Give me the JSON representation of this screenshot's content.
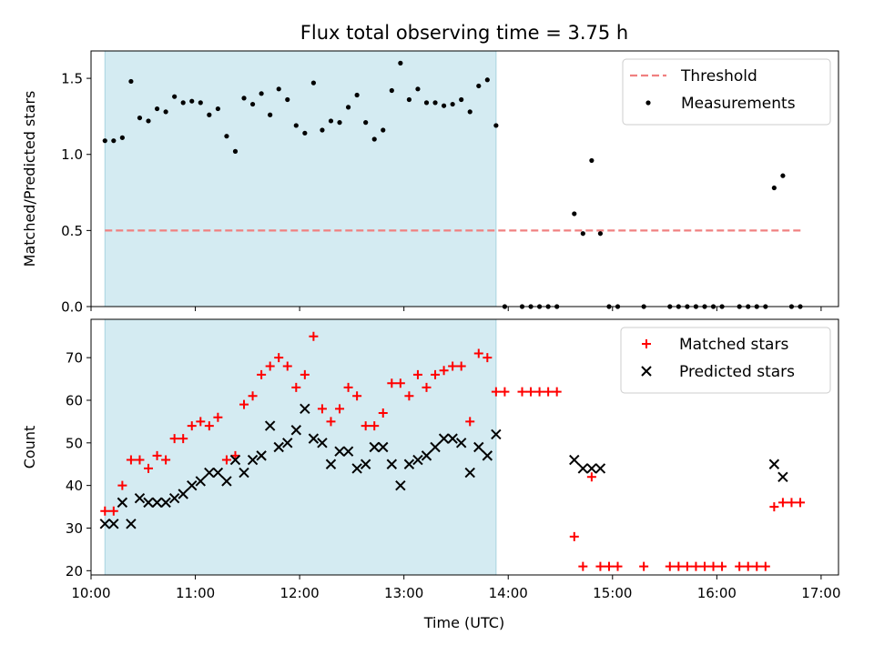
{
  "title": "Flux total observing time = 3.75 h",
  "xlabel": "Time (UTC)",
  "chart_data": [
    {
      "type": "scatter",
      "ylabel": "Matched/Predicted stars",
      "ylim": [
        0,
        1.68
      ],
      "yticks": [
        0.0,
        0.5,
        1.0,
        1.5
      ],
      "ytick_labels": [
        "0.0",
        "0.5",
        "1.0",
        "1.5"
      ],
      "xlim": [
        "10:00",
        "17:10"
      ],
      "shaded_span": [
        "10:08",
        "13:53"
      ],
      "legend_position": "top-right",
      "threshold": {
        "name": "Threshold",
        "value": 0.5,
        "x": [
          "10:08",
          "16:50"
        ],
        "color": "#f08080"
      },
      "series": [
        {
          "name": "Measurements",
          "color": "#000000",
          "x": [
            "10:08",
            "10:13",
            "10:18",
            "10:23",
            "10:28",
            "10:33",
            "10:38",
            "10:43",
            "10:48",
            "10:53",
            "10:58",
            "11:03",
            "11:08",
            "11:13",
            "11:18",
            "11:23",
            "11:28",
            "11:33",
            "11:38",
            "11:43",
            "11:48",
            "11:53",
            "11:58",
            "12:03",
            "12:08",
            "12:13",
            "12:18",
            "12:23",
            "12:28",
            "12:33",
            "12:38",
            "12:43",
            "12:48",
            "12:53",
            "12:58",
            "13:03",
            "13:08",
            "13:13",
            "13:18",
            "13:23",
            "13:28",
            "13:33",
            "13:38",
            "13:43",
            "13:48",
            "13:53",
            "13:58",
            "14:08",
            "14:13",
            "14:18",
            "14:23",
            "14:28",
            "14:38",
            "14:43",
            "14:48",
            "14:53",
            "14:58",
            "15:03",
            "15:18",
            "15:33",
            "15:38",
            "15:43",
            "15:48",
            "15:53",
            "15:58",
            "16:03",
            "16:13",
            "16:18",
            "16:23",
            "16:28",
            "16:33",
            "16:38",
            "16:43",
            "16:48"
          ],
          "y": [
            1.09,
            1.09,
            1.11,
            1.48,
            1.24,
            1.22,
            1.3,
            1.28,
            1.38,
            1.34,
            1.35,
            1.34,
            1.26,
            1.3,
            1.12,
            1.02,
            1.37,
            1.33,
            1.4,
            1.26,
            1.43,
            1.36,
            1.19,
            1.14,
            1.47,
            1.16,
            1.22,
            1.21,
            1.31,
            1.39,
            1.21,
            1.1,
            1.16,
            1.42,
            1.6,
            1.36,
            1.43,
            1.34,
            1.34,
            1.32,
            1.33,
            1.36,
            1.28,
            1.45,
            1.49,
            1.19,
            0.0,
            0.0,
            0.0,
            0.0,
            0.0,
            0.0,
            0.61,
            0.48,
            0.96,
            0.48,
            0.0,
            0.0,
            0.0,
            0.0,
            0.0,
            0.0,
            0.0,
            0.0,
            0.0,
            0.0,
            0.0,
            0.0,
            0.0,
            0.0,
            0.78,
            0.86,
            0.0,
            0.0
          ]
        }
      ]
    },
    {
      "type": "scatter",
      "ylabel": "Count",
      "ylim": [
        19,
        79
      ],
      "yticks": [
        20,
        30,
        40,
        50,
        60,
        70
      ],
      "ytick_labels": [
        "20",
        "30",
        "40",
        "50",
        "60",
        "70"
      ],
      "xlim": [
        "10:00",
        "17:10"
      ],
      "xticks": [
        "10:00",
        "11:00",
        "12:00",
        "13:00",
        "14:00",
        "15:00",
        "16:00",
        "17:00"
      ],
      "xtick_labels": [
        "10:00",
        "11:00",
        "12:00",
        "13:00",
        "14:00",
        "15:00",
        "16:00",
        "17:00"
      ],
      "shaded_span": [
        "10:08",
        "13:53"
      ],
      "legend_position": "top-right",
      "series": [
        {
          "name": "Matched stars",
          "marker": "plus",
          "color": "#ff0000",
          "x": [
            "10:08",
            "10:13",
            "10:18",
            "10:23",
            "10:28",
            "10:33",
            "10:38",
            "10:43",
            "10:48",
            "10:53",
            "10:58",
            "11:03",
            "11:08",
            "11:13",
            "11:18",
            "11:23",
            "11:28",
            "11:33",
            "11:38",
            "11:43",
            "11:48",
            "11:53",
            "11:58",
            "12:03",
            "12:08",
            "12:13",
            "12:18",
            "12:23",
            "12:28",
            "12:33",
            "12:38",
            "12:43",
            "12:48",
            "12:53",
            "12:58",
            "13:03",
            "13:08",
            "13:13",
            "13:18",
            "13:23",
            "13:28",
            "13:33",
            "13:38",
            "13:43",
            "13:48",
            "13:53",
            "13:58",
            "14:08",
            "14:13",
            "14:18",
            "14:23",
            "14:28",
            "14:38",
            "14:43",
            "14:48",
            "14:53",
            "14:58",
            "15:03",
            "15:18",
            "15:33",
            "15:38",
            "15:43",
            "15:48",
            "15:53",
            "15:58",
            "16:03",
            "16:13",
            "16:18",
            "16:23",
            "16:28",
            "16:33",
            "16:38",
            "16:43",
            "16:48"
          ],
          "y": [
            34,
            34,
            40,
            46,
            46,
            44,
            47,
            46,
            51,
            51,
            54,
            55,
            54,
            56,
            46,
            47,
            59,
            61,
            66,
            68,
            70,
            68,
            63,
            66,
            75,
            58,
            55,
            58,
            63,
            61,
            54,
            54,
            57,
            64,
            64,
            61,
            66,
            63,
            66,
            67,
            68,
            68,
            55,
            71,
            70,
            62,
            62,
            62,
            62,
            62,
            62,
            62,
            28,
            21,
            42,
            21,
            21,
            21,
            21,
            21,
            21,
            21,
            21,
            21,
            21,
            21,
            21,
            21,
            21,
            21,
            35,
            36,
            36,
            36
          ]
        },
        {
          "name": "Predicted stars",
          "marker": "x",
          "color": "#000000",
          "x": [
            "10:08",
            "10:13",
            "10:18",
            "10:23",
            "10:28",
            "10:33",
            "10:38",
            "10:43",
            "10:48",
            "10:53",
            "10:58",
            "11:03",
            "11:08",
            "11:13",
            "11:18",
            "11:23",
            "11:28",
            "11:33",
            "11:38",
            "11:43",
            "11:48",
            "11:53",
            "11:58",
            "12:03",
            "12:08",
            "12:13",
            "12:18",
            "12:23",
            "12:28",
            "12:33",
            "12:38",
            "12:43",
            "12:48",
            "12:53",
            "12:58",
            "13:03",
            "13:08",
            "13:13",
            "13:18",
            "13:23",
            "13:28",
            "13:33",
            "13:38",
            "13:43",
            "13:48",
            "13:53",
            "14:38",
            "14:43",
            "14:48",
            "14:53",
            "16:33",
            "16:38"
          ],
          "y": [
            31,
            31,
            36,
            31,
            37,
            36,
            36,
            36,
            37,
            38,
            40,
            41,
            43,
            43,
            41,
            46,
            43,
            46,
            47,
            54,
            49,
            50,
            53,
            58,
            51,
            50,
            45,
            48,
            48,
            44,
            45,
            49,
            49,
            45,
            40,
            45,
            46,
            47,
            49,
            51,
            51,
            50,
            43,
            49,
            47,
            52,
            46,
            44,
            44,
            44,
            45,
            42
          ]
        }
      ]
    }
  ]
}
